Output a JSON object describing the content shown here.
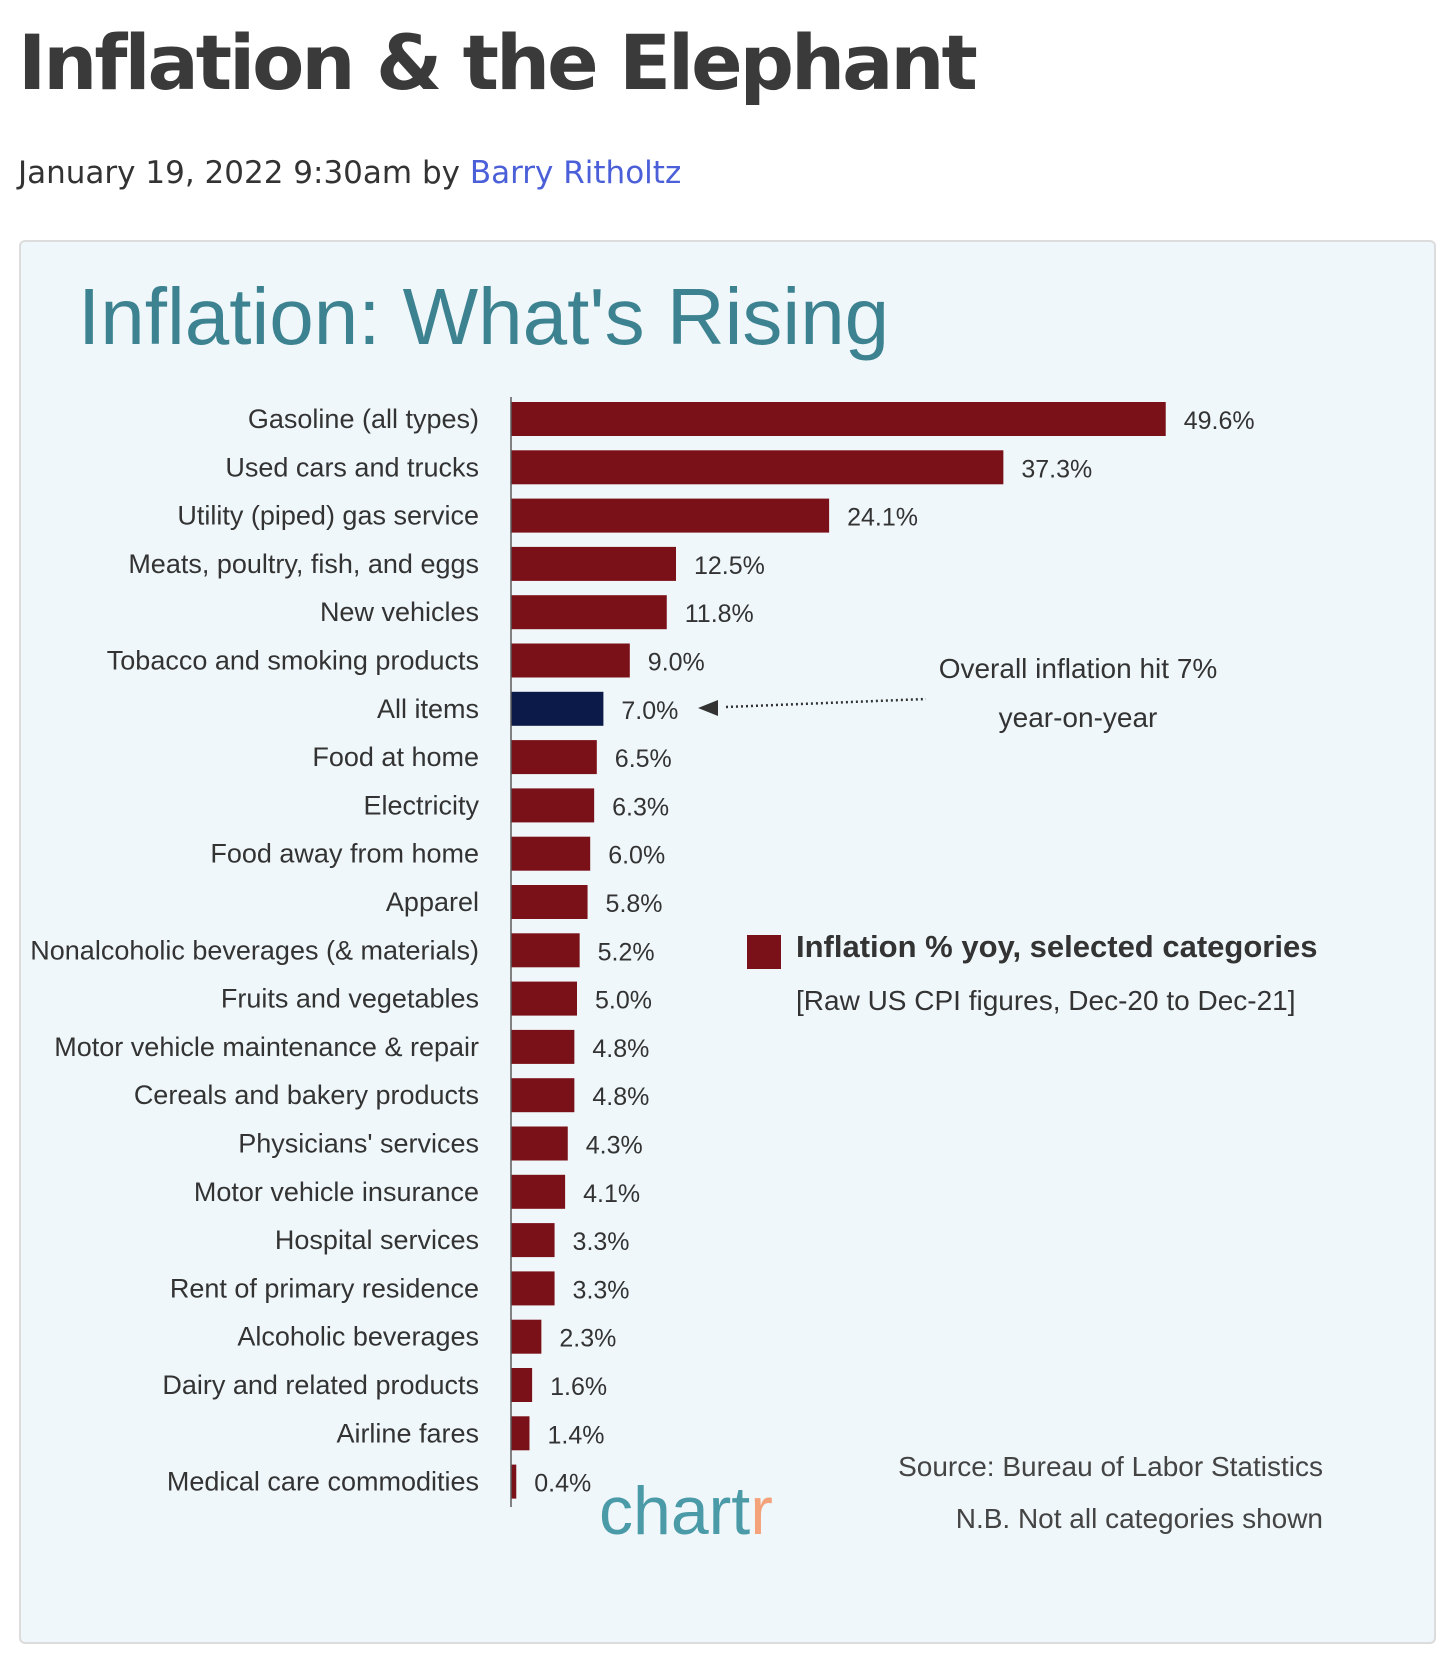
{
  "post": {
    "title": "Inflation & the Elephant",
    "date": "January 19, 2022 9:30am",
    "by": "by",
    "author": "Barry Ritholtz"
  },
  "colors": {
    "bar": "#7b1118",
    "highlight": "#0c1a4a",
    "title": "#3d8290",
    "text": "#333333",
    "brand_main": "#4a9aa8",
    "brand_accent": "#f3a27a"
  },
  "chart_data": {
    "type": "bar",
    "orientation": "horizontal",
    "title": "Inflation: What's Rising",
    "unit": "%",
    "xlim": [
      0,
      50
    ],
    "grid": false,
    "categories": [
      "Gasoline (all types)",
      "Used cars and trucks",
      "Utility (piped) gas service",
      "Meats, poultry, fish, and eggs",
      "New vehicles",
      "Tobacco and smoking products",
      "All items",
      "Food at home",
      "Electricity",
      "Food away from home",
      "Apparel",
      "Nonalcoholic beverages (& materials)",
      "Fruits and vegetables",
      "Motor vehicle maintenance & repair",
      "Cereals and bakery products",
      "Physicians' services",
      "Motor vehicle insurance",
      "Hospital services",
      "Rent of primary residence",
      "Alcoholic beverages",
      "Dairy and related products",
      "Airline fares",
      "Medical care commodities"
    ],
    "values": [
      49.6,
      37.3,
      24.1,
      12.5,
      11.8,
      9.0,
      7.0,
      6.5,
      6.3,
      6.0,
      5.8,
      5.2,
      5.0,
      4.8,
      4.8,
      4.3,
      4.1,
      3.3,
      3.3,
      2.3,
      1.6,
      1.4,
      0.4
    ],
    "value_labels": [
      "49.6%",
      "37.3%",
      "24.1%",
      "12.5%",
      "11.8%",
      "9.0%",
      "7.0%",
      "6.5%",
      "6.3%",
      "6.0%",
      "5.8%",
      "5.2%",
      "5.0%",
      "4.8%",
      "4.8%",
      "4.3%",
      "4.1%",
      "3.3%",
      "3.3%",
      "2.3%",
      "1.6%",
      "1.4%",
      "0.4%"
    ],
    "highlight_category": "All items",
    "annotation": {
      "target": "All items",
      "lines": [
        "Overall inflation hit 7%",
        "year-on-year"
      ]
    },
    "legend": {
      "position": "right",
      "label": "Inflation % yoy, selected categories",
      "sublabel": "[Raw US CPI figures, Dec-20 to Dec-21]"
    },
    "source": "Source: Bureau of Labor Statistics",
    "note": "N.B. Not all categories shown",
    "brand": "chartr"
  }
}
